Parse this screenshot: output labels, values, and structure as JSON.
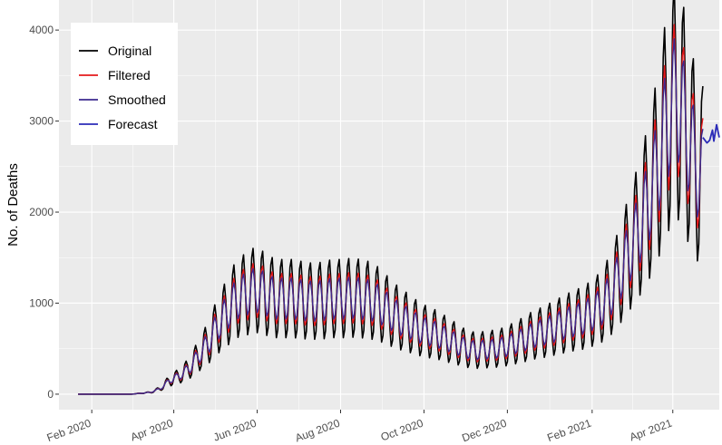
{
  "chart_data": {
    "type": "line",
    "title": "",
    "xlabel": "",
    "ylabel": "No. of Deaths",
    "x_range": [
      "2020-01-08",
      "2021-05-05"
    ],
    "ylim": [
      -170,
      4330
    ],
    "y_ticks": [
      0,
      1000,
      2000,
      3000,
      4000
    ],
    "y_tick_labels": [
      "0",
      "1000",
      "2000",
      "3000",
      "4000"
    ],
    "x_ticks": [
      {
        "date": "2020-02-01",
        "label": "Feb 2020"
      },
      {
        "date": "2020-04-01",
        "label": "Apr 2020"
      },
      {
        "date": "2020-06-01",
        "label": "Jun 2020"
      },
      {
        "date": "2020-08-01",
        "label": "Aug 2020"
      },
      {
        "date": "2020-10-01",
        "label": "Oct 2020"
      },
      {
        "date": "2020-12-01",
        "label": "Dec 2020"
      },
      {
        "date": "2021-02-01",
        "label": "Feb 2021"
      },
      {
        "date": "2021-04-01",
        "label": "Apr 2021"
      }
    ],
    "grid": true,
    "legend_position": "top-left",
    "background_color": "#ebebeb",
    "grid_color": "#ffffff",
    "series": [
      {
        "name": "Original",
        "color": "#000000",
        "dates": [
          "2020-01-22",
          "2020-03-01",
          "2020-03-15",
          "2020-03-22",
          "2020-03-29",
          "2020-04-05",
          "2020-04-12",
          "2020-04-19",
          "2020-04-26",
          "2020-05-03",
          "2020-05-10",
          "2020-05-17",
          "2020-05-24",
          "2020-05-31",
          "2020-06-07",
          "2020-06-14",
          "2020-06-21",
          "2020-06-28",
          "2020-07-05",
          "2020-07-12",
          "2020-07-19",
          "2020-07-26",
          "2020-08-02",
          "2020-08-09",
          "2020-08-16",
          "2020-08-23",
          "2020-08-30",
          "2020-09-06",
          "2020-09-13",
          "2020-09-20",
          "2020-09-27",
          "2020-10-04",
          "2020-10-11",
          "2020-10-18",
          "2020-10-25",
          "2020-11-01",
          "2020-11-08",
          "2020-11-15",
          "2020-11-22",
          "2020-11-29",
          "2020-12-06",
          "2020-12-13",
          "2020-12-20",
          "2020-12-27",
          "2021-01-03",
          "2021-01-10",
          "2021-01-17",
          "2021-01-24",
          "2021-01-31",
          "2021-02-07",
          "2021-02-14",
          "2021-02-21",
          "2021-02-28",
          "2021-03-07",
          "2021-03-14",
          "2021-03-21",
          "2021-03-28",
          "2021-04-04",
          "2021-04-11",
          "2021-04-18",
          "2021-04-23"
        ],
        "values": [
          0,
          0,
          20,
          60,
          150,
          200,
          280,
          420,
          560,
          750,
          900,
          1050,
          1100,
          1150,
          1100,
          1050,
          1050,
          1050,
          1030,
          1020,
          1030,
          1050,
          1050,
          1060,
          1050,
          1030,
          980,
          900,
          830,
          780,
          720,
          680,
          650,
          600,
          550,
          500,
          480,
          490,
          500,
          520,
          560,
          600,
          650,
          680,
          720,
          760,
          800,
          830,
          880,
          950,
          1080,
          1300,
          1550,
          1800,
          2100,
          2500,
          3000,
          3300,
          2900,
          2500,
          2400
        ],
        "weekly_amplitude": 0.42
      },
      {
        "name": "Filtered",
        "color": "#e41a1c",
        "dates": [
          "2020-01-22",
          "2020-03-01",
          "2020-03-15",
          "2020-03-22",
          "2020-03-29",
          "2020-04-05",
          "2020-04-12",
          "2020-04-19",
          "2020-04-26",
          "2020-05-03",
          "2020-05-10",
          "2020-05-17",
          "2020-05-24",
          "2020-05-31",
          "2020-06-07",
          "2020-06-14",
          "2020-06-21",
          "2020-06-28",
          "2020-07-05",
          "2020-07-12",
          "2020-07-19",
          "2020-07-26",
          "2020-08-02",
          "2020-08-09",
          "2020-08-16",
          "2020-08-23",
          "2020-08-30",
          "2020-09-06",
          "2020-09-13",
          "2020-09-20",
          "2020-09-27",
          "2020-10-04",
          "2020-10-11",
          "2020-10-18",
          "2020-10-25",
          "2020-11-01",
          "2020-11-08",
          "2020-11-15",
          "2020-11-22",
          "2020-11-29",
          "2020-12-06",
          "2020-12-13",
          "2020-12-20",
          "2020-12-27",
          "2021-01-03",
          "2021-01-10",
          "2021-01-17",
          "2021-01-24",
          "2021-01-31",
          "2021-02-07",
          "2021-02-14",
          "2021-02-21",
          "2021-02-28",
          "2021-03-07",
          "2021-03-14",
          "2021-03-21",
          "2021-03-28",
          "2021-04-04",
          "2021-04-11",
          "2021-04-18",
          "2021-04-23"
        ],
        "values": [
          0,
          0,
          20,
          60,
          150,
          200,
          280,
          420,
          560,
          750,
          900,
          1050,
          1100,
          1150,
          1100,
          1050,
          1050,
          1050,
          1030,
          1020,
          1030,
          1050,
          1050,
          1060,
          1050,
          1030,
          980,
          900,
          830,
          780,
          720,
          680,
          650,
          600,
          550,
          500,
          480,
          490,
          500,
          520,
          560,
          600,
          650,
          680,
          720,
          760,
          800,
          830,
          880,
          950,
          1080,
          1300,
          1550,
          1800,
          2100,
          2500,
          3000,
          3300,
          2900,
          2500,
          2400
        ],
        "weekly_amplitude": 0.27
      },
      {
        "name": "Smoothed",
        "color": "#3b2a8f",
        "dates": [
          "2020-01-22",
          "2020-03-01",
          "2020-03-15",
          "2020-03-22",
          "2020-03-29",
          "2020-04-05",
          "2020-04-12",
          "2020-04-19",
          "2020-04-26",
          "2020-05-03",
          "2020-05-10",
          "2020-05-17",
          "2020-05-24",
          "2020-05-31",
          "2020-06-07",
          "2020-06-14",
          "2020-06-21",
          "2020-06-28",
          "2020-07-05",
          "2020-07-12",
          "2020-07-19",
          "2020-07-26",
          "2020-08-02",
          "2020-08-09",
          "2020-08-16",
          "2020-08-23",
          "2020-08-30",
          "2020-09-06",
          "2020-09-13",
          "2020-09-20",
          "2020-09-27",
          "2020-10-04",
          "2020-10-11",
          "2020-10-18",
          "2020-10-25",
          "2020-11-01",
          "2020-11-08",
          "2020-11-15",
          "2020-11-22",
          "2020-11-29",
          "2020-12-06",
          "2020-12-13",
          "2020-12-20",
          "2020-12-27",
          "2021-01-03",
          "2021-01-10",
          "2021-01-17",
          "2021-01-24",
          "2021-01-31",
          "2021-02-07",
          "2021-02-14",
          "2021-02-21",
          "2021-02-28",
          "2021-03-07",
          "2021-03-14",
          "2021-03-21",
          "2021-03-28",
          "2021-04-04",
          "2021-04-11",
          "2021-04-18",
          "2021-04-23"
        ],
        "values": [
          0,
          0,
          20,
          60,
          150,
          200,
          280,
          420,
          560,
          750,
          900,
          1050,
          1100,
          1150,
          1100,
          1050,
          1050,
          1050,
          1030,
          1020,
          1030,
          1050,
          1050,
          1060,
          1050,
          1030,
          980,
          900,
          830,
          780,
          720,
          680,
          650,
          600,
          550,
          500,
          480,
          490,
          500,
          520,
          560,
          600,
          650,
          680,
          720,
          760,
          800,
          830,
          880,
          950,
          1080,
          1300,
          1550,
          1800,
          2100,
          2500,
          3000,
          3300,
          2900,
          2500,
          2400
        ],
        "weekly_amplitude": 0.22
      },
      {
        "name": "Forecast",
        "color": "#2b2bb8",
        "dates": [
          "2021-04-23",
          "2021-04-26",
          "2021-04-28",
          "2021-04-30",
          "2021-05-01",
          "2021-05-03",
          "2021-05-05"
        ],
        "values": [
          2820,
          2760,
          2790,
          2900,
          2780,
          2960,
          2820
        ]
      }
    ]
  }
}
